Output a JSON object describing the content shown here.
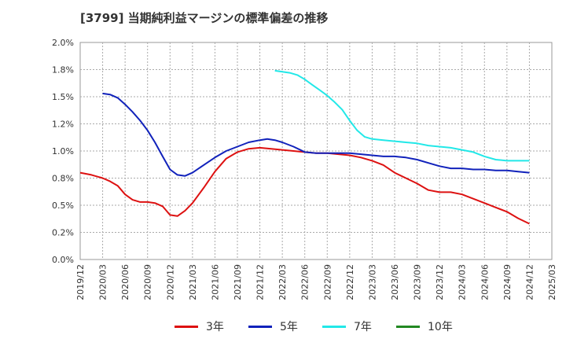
{
  "chart_data": {
    "type": "line",
    "title": "[3799]  当期純利益マージンの標準偏差の推移",
    "xlabel": "",
    "ylabel": "",
    "ylim": [
      0,
      2.0
    ],
    "y_ticks": [
      "0.0%",
      "0.2%",
      "0.5%",
      "0.8%",
      "1.0%",
      "1.2%",
      "1.5%",
      "1.8%",
      "2.0%"
    ],
    "y_tick_values": [
      0,
      0.25,
      0.5,
      0.75,
      1.0,
      1.25,
      1.5,
      1.75,
      2.0
    ],
    "x_ticks": [
      "2019/12",
      "2020/03",
      "2020/06",
      "2020/09",
      "2020/12",
      "2021/03",
      "2021/06",
      "2021/09",
      "2021/12",
      "2022/03",
      "2022/06",
      "2022/09",
      "2022/12",
      "2023/03",
      "2023/06",
      "2023/09",
      "2023/12",
      "2024/03",
      "2024/06",
      "2024/09",
      "2024/12",
      "2025/03"
    ],
    "grid": true,
    "legend_position": "bottom",
    "series": [
      {
        "name": "3年",
        "color": "#dd1111",
        "x_index": [
          0,
          0.5,
          1,
          1.33,
          1.67,
          2,
          2.33,
          2.67,
          3,
          3.33,
          3.67,
          4,
          4.33,
          4.67,
          5,
          5.5,
          6,
          6.5,
          7,
          7.5,
          8,
          8.5,
          9,
          9.5,
          10,
          10.5,
          11,
          11.5,
          12,
          12.5,
          13,
          13.5,
          14,
          14.5,
          15,
          15.5,
          16,
          16.5,
          17,
          17.5,
          18,
          18.5,
          19,
          19.5,
          20
        ],
        "values": [
          0.8,
          0.78,
          0.75,
          0.72,
          0.68,
          0.6,
          0.55,
          0.53,
          0.53,
          0.52,
          0.49,
          0.41,
          0.4,
          0.45,
          0.52,
          0.66,
          0.81,
          0.93,
          0.99,
          1.02,
          1.03,
          1.02,
          1.01,
          1.0,
          0.99,
          0.98,
          0.98,
          0.97,
          0.96,
          0.94,
          0.91,
          0.87,
          0.8,
          0.75,
          0.7,
          0.64,
          0.62,
          0.62,
          0.6,
          0.56,
          0.52,
          0.48,
          0.44,
          0.38,
          0.33
        ]
      },
      {
        "name": "5年",
        "color": "#1122bb",
        "x_index": [
          1,
          1.33,
          1.67,
          2,
          2.33,
          2.67,
          3,
          3.33,
          3.67,
          4,
          4.33,
          4.67,
          5,
          5.5,
          6,
          6.5,
          7,
          7.5,
          8,
          8.33,
          8.67,
          9,
          9.5,
          10,
          10.5,
          11,
          11.5,
          12,
          12.5,
          13,
          13.5,
          14,
          14.5,
          15,
          15.5,
          16,
          16.5,
          17,
          17.5,
          18,
          18.5,
          19,
          19.5,
          20
        ],
        "values": [
          1.53,
          1.52,
          1.49,
          1.43,
          1.36,
          1.28,
          1.19,
          1.08,
          0.95,
          0.83,
          0.78,
          0.77,
          0.8,
          0.87,
          0.94,
          1.0,
          1.04,
          1.08,
          1.1,
          1.11,
          1.1,
          1.08,
          1.04,
          0.99,
          0.98,
          0.98,
          0.98,
          0.98,
          0.97,
          0.96,
          0.95,
          0.95,
          0.94,
          0.92,
          0.89,
          0.86,
          0.84,
          0.84,
          0.83,
          0.83,
          0.82,
          0.82,
          0.81,
          0.8
        ]
      },
      {
        "name": "7年",
        "color": "#22e8e8",
        "x_index": [
          8.67,
          9,
          9.33,
          9.67,
          10,
          10.33,
          10.67,
          11,
          11.33,
          11.67,
          12,
          12.33,
          12.67,
          13,
          13.5,
          14,
          14.5,
          15,
          15.5,
          16,
          16.5,
          17,
          17.5,
          18,
          18.5,
          19,
          19.5,
          20
        ],
        "values": [
          1.74,
          1.73,
          1.72,
          1.7,
          1.66,
          1.61,
          1.56,
          1.51,
          1.45,
          1.38,
          1.28,
          1.19,
          1.13,
          1.11,
          1.1,
          1.09,
          1.08,
          1.07,
          1.05,
          1.04,
          1.03,
          1.01,
          0.99,
          0.95,
          0.92,
          0.91,
          0.91,
          0.91
        ]
      },
      {
        "name": "10年",
        "color": "#228822",
        "x_index": [],
        "values": []
      }
    ]
  }
}
